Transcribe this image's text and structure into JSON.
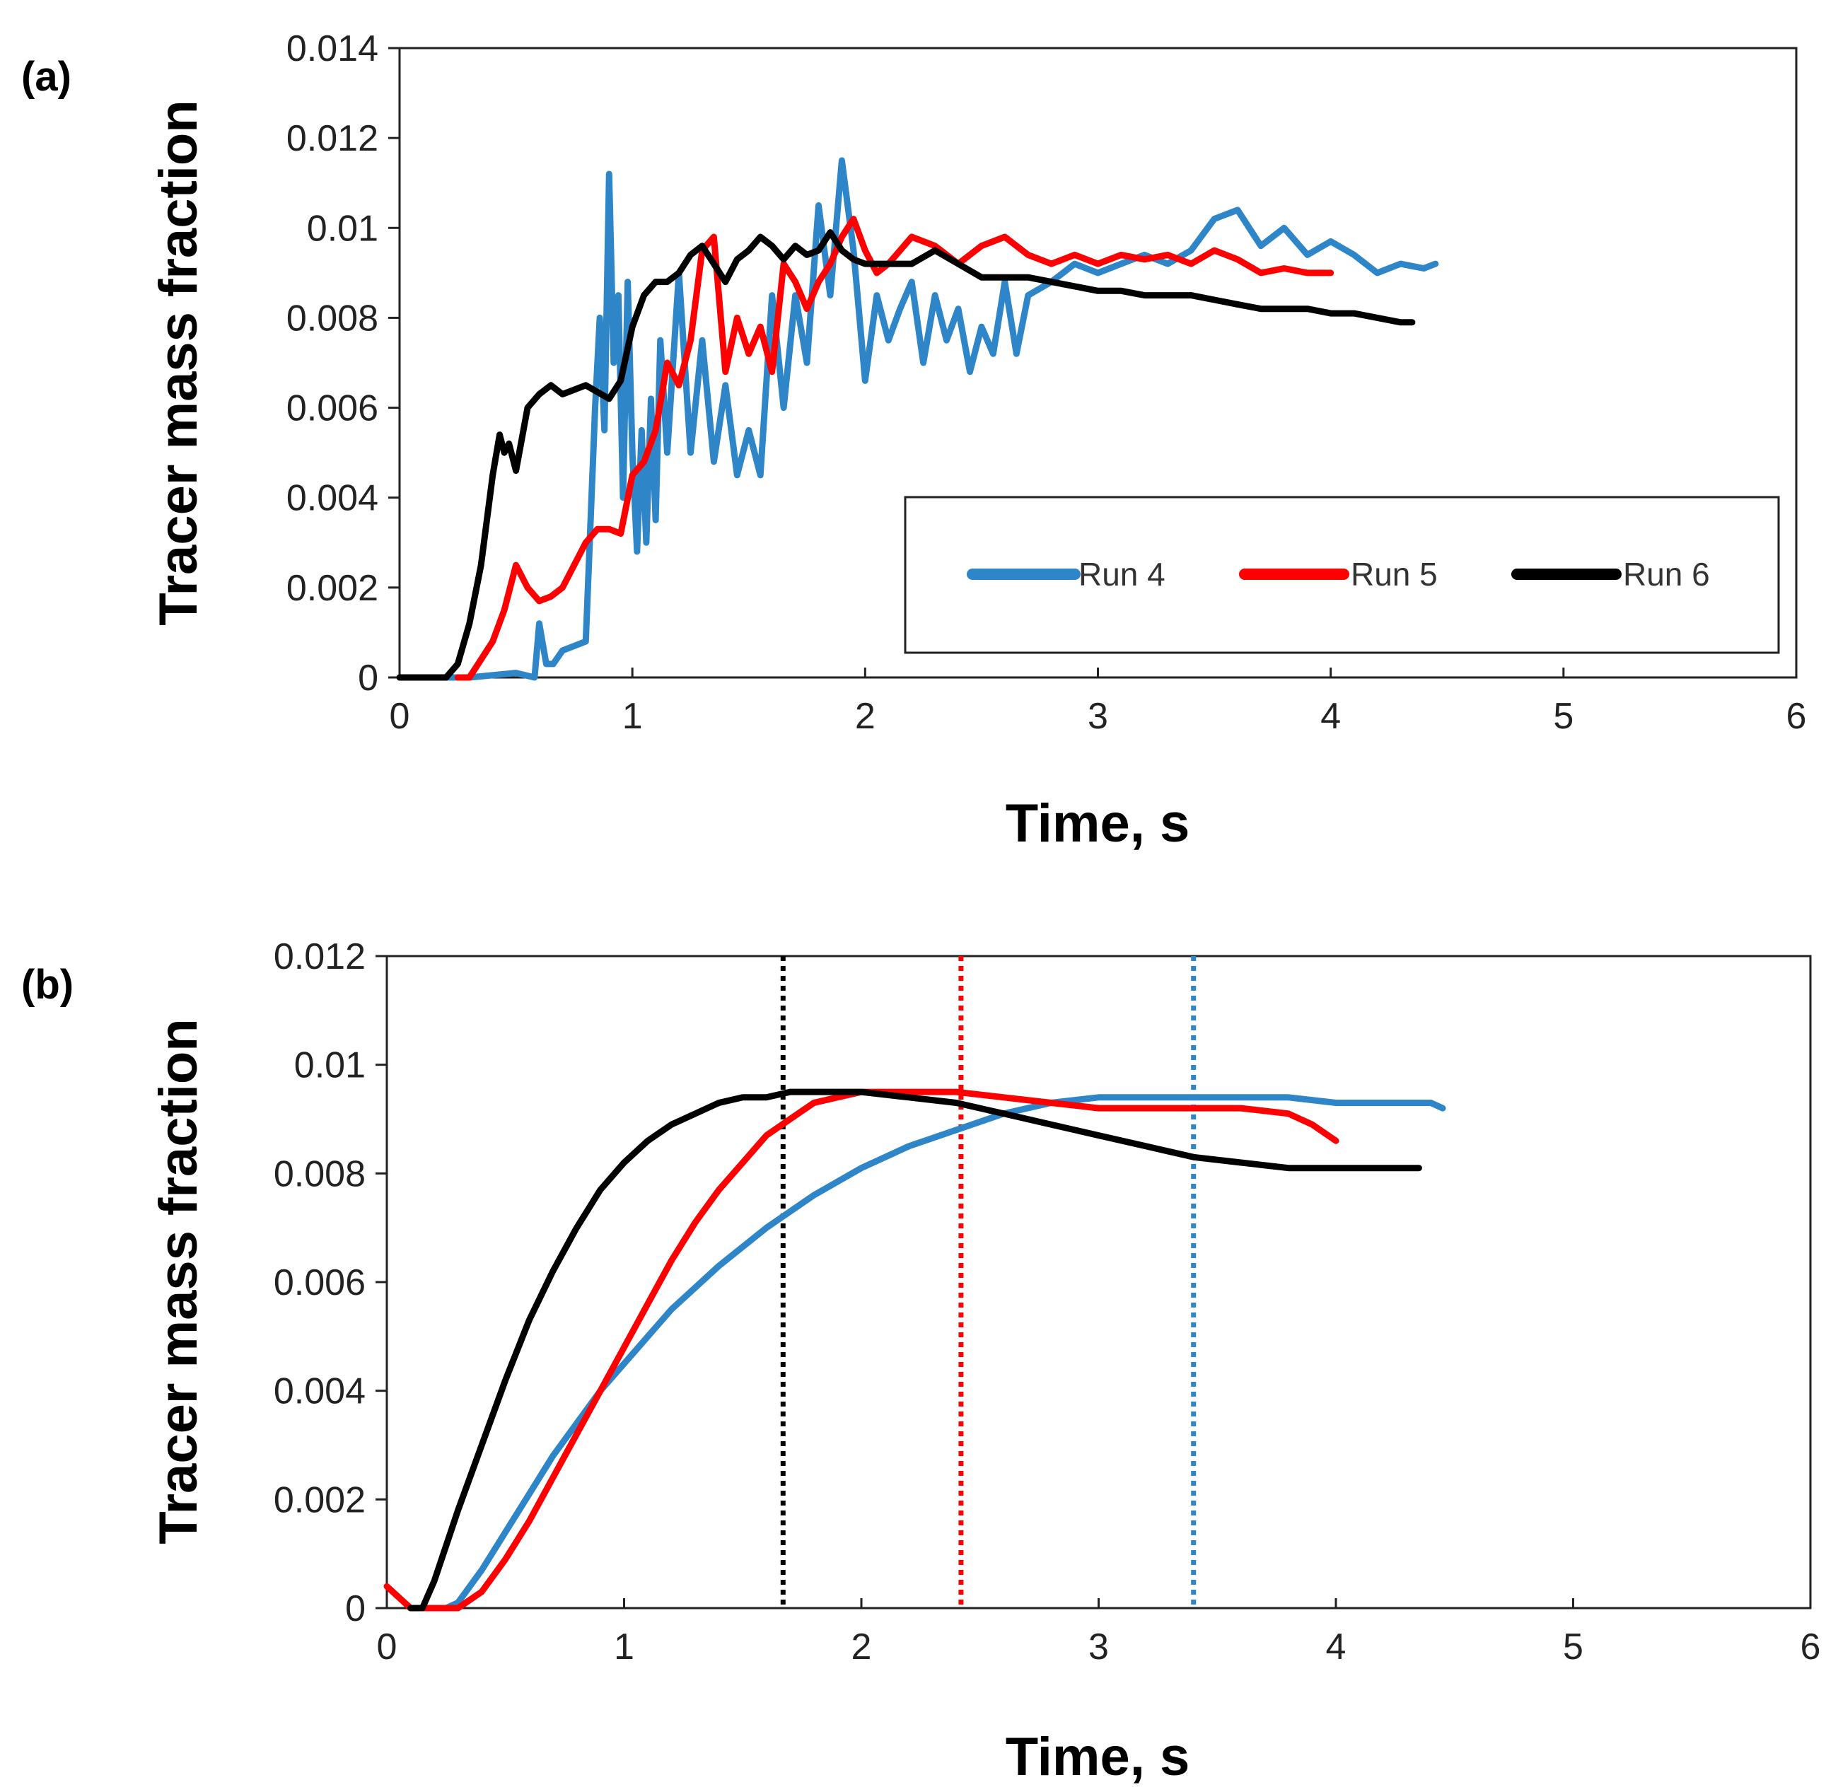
{
  "chart_data": [
    {
      "panel": "(a)",
      "type": "line",
      "xlabel": "Time, s",
      "ylabel": "Tracer  mass fraction",
      "xlim": [
        0,
        6
      ],
      "ylim": [
        0,
        0.014
      ],
      "xticks": [
        "0",
        "1",
        "2",
        "3",
        "4",
        "5",
        "6"
      ],
      "yticks": [
        "0",
        "0.002",
        "0.004",
        "0.006",
        "0.008",
        "0.01",
        "0.012",
        "0.014"
      ],
      "legend_position": "bottom-right",
      "series": [
        {
          "name": "Run 4",
          "color": "#2e86c8",
          "x": [
            0,
            0.3,
            0.5,
            0.58,
            0.6,
            0.63,
            0.66,
            0.7,
            0.8,
            0.84,
            0.86,
            0.88,
            0.9,
            0.92,
            0.94,
            0.96,
            0.98,
            1.0,
            1.02,
            1.04,
            1.06,
            1.08,
            1.1,
            1.12,
            1.15,
            1.2,
            1.25,
            1.3,
            1.35,
            1.4,
            1.45,
            1.5,
            1.55,
            1.6,
            1.65,
            1.7,
            1.75,
            1.8,
            1.85,
            1.9,
            1.95,
            2.0,
            2.05,
            2.1,
            2.15,
            2.2,
            2.25,
            2.3,
            2.35,
            2.4,
            2.45,
            2.5,
            2.55,
            2.6,
            2.65,
            2.7,
            2.8,
            2.9,
            3.0,
            3.1,
            3.2,
            3.3,
            3.4,
            3.5,
            3.6,
            3.7,
            3.8,
            3.9,
            4.0,
            4.1,
            4.2,
            4.3,
            4.4,
            4.45
          ],
          "y": [
            0,
            0,
            0.0001,
            0.0,
            0.0012,
            0.0003,
            0.0003,
            0.0006,
            0.0008,
            0.006,
            0.008,
            0.0055,
            0.0112,
            0.007,
            0.0085,
            0.004,
            0.0088,
            0.005,
            0.0028,
            0.0055,
            0.003,
            0.0062,
            0.0035,
            0.0075,
            0.005,
            0.009,
            0.005,
            0.0075,
            0.0048,
            0.0065,
            0.0045,
            0.0055,
            0.0045,
            0.0085,
            0.006,
            0.0085,
            0.007,
            0.0105,
            0.0085,
            0.0115,
            0.0095,
            0.0066,
            0.0085,
            0.0075,
            0.0082,
            0.0088,
            0.007,
            0.0085,
            0.0075,
            0.0082,
            0.0068,
            0.0078,
            0.0072,
            0.0088,
            0.0072,
            0.0085,
            0.0088,
            0.0092,
            0.009,
            0.0092,
            0.0094,
            0.0092,
            0.0095,
            0.0102,
            0.0104,
            0.0096,
            0.01,
            0.0094,
            0.0097,
            0.0094,
            0.009,
            0.0092,
            0.0091,
            0.0092
          ]
        },
        {
          "name": "Run 5",
          "color": "#ff0000",
          "x": [
            0.25,
            0.3,
            0.4,
            0.45,
            0.5,
            0.55,
            0.6,
            0.65,
            0.7,
            0.75,
            0.8,
            0.85,
            0.9,
            0.95,
            1.0,
            1.05,
            1.1,
            1.15,
            1.2,
            1.25,
            1.3,
            1.35,
            1.4,
            1.45,
            1.5,
            1.55,
            1.6,
            1.65,
            1.7,
            1.75,
            1.8,
            1.85,
            1.9,
            1.95,
            2.0,
            2.05,
            2.1,
            2.2,
            2.3,
            2.4,
            2.5,
            2.6,
            2.7,
            2.8,
            2.9,
            3.0,
            3.1,
            3.2,
            3.3,
            3.4,
            3.5,
            3.6,
            3.7,
            3.8,
            3.9,
            4.0
          ],
          "y": [
            0,
            0,
            0.0008,
            0.0015,
            0.0025,
            0.002,
            0.0017,
            0.0018,
            0.002,
            0.0025,
            0.003,
            0.0033,
            0.0033,
            0.0032,
            0.0045,
            0.0048,
            0.0055,
            0.007,
            0.0065,
            0.0075,
            0.0095,
            0.0098,
            0.0068,
            0.008,
            0.0072,
            0.0078,
            0.0068,
            0.0092,
            0.0088,
            0.0082,
            0.0088,
            0.0092,
            0.0098,
            0.0102,
            0.0095,
            0.009,
            0.0092,
            0.0098,
            0.0096,
            0.0092,
            0.0096,
            0.0098,
            0.0094,
            0.0092,
            0.0094,
            0.0092,
            0.0094,
            0.0093,
            0.0094,
            0.0092,
            0.0095,
            0.0093,
            0.009,
            0.0091,
            0.009,
            0.009
          ]
        },
        {
          "name": "Run 6",
          "color": "#000000",
          "x": [
            0,
            0.2,
            0.25,
            0.3,
            0.35,
            0.4,
            0.43,
            0.45,
            0.47,
            0.5,
            0.55,
            0.6,
            0.65,
            0.7,
            0.8,
            0.9,
            0.95,
            1.0,
            1.05,
            1.1,
            1.15,
            1.2,
            1.25,
            1.3,
            1.35,
            1.4,
            1.45,
            1.5,
            1.55,
            1.6,
            1.65,
            1.7,
            1.75,
            1.8,
            1.85,
            1.9,
            1.95,
            2.0,
            2.1,
            2.2,
            2.3,
            2.4,
            2.5,
            2.6,
            2.7,
            2.8,
            2.9,
            3.0,
            3.1,
            3.2,
            3.3,
            3.4,
            3.5,
            3.6,
            3.7,
            3.8,
            3.9,
            4.0,
            4.1,
            4.2,
            4.3,
            4.35
          ],
          "y": [
            0,
            0,
            0.0003,
            0.0012,
            0.0025,
            0.0045,
            0.0054,
            0.005,
            0.0052,
            0.0046,
            0.006,
            0.0063,
            0.0065,
            0.0063,
            0.0065,
            0.0062,
            0.0066,
            0.0078,
            0.0085,
            0.0088,
            0.0088,
            0.009,
            0.0094,
            0.0096,
            0.0092,
            0.0088,
            0.0093,
            0.0095,
            0.0098,
            0.0096,
            0.0093,
            0.0096,
            0.0094,
            0.0095,
            0.0099,
            0.0095,
            0.0093,
            0.0092,
            0.0092,
            0.0092,
            0.0095,
            0.0092,
            0.0089,
            0.0089,
            0.0089,
            0.0088,
            0.0087,
            0.0086,
            0.0086,
            0.0085,
            0.0085,
            0.0085,
            0.0084,
            0.0083,
            0.0082,
            0.0082,
            0.0082,
            0.0081,
            0.0081,
            0.008,
            0.0079,
            0.0079
          ]
        }
      ]
    },
    {
      "panel": "(b)",
      "type": "line",
      "xlabel": "Time, s",
      "ylabel": "Tracer  mass fraction",
      "xlim": [
        0,
        6
      ],
      "ylim": [
        0,
        0.012
      ],
      "xticks": [
        "0",
        "1",
        "2",
        "3",
        "4",
        "5",
        "6"
      ],
      "yticks": [
        "0",
        "0.002",
        "0.004",
        "0.006",
        "0.008",
        "0.01",
        "0.012"
      ],
      "series": [
        {
          "name": "Run 4",
          "color": "#2e86c8",
          "x": [
            0.25,
            0.3,
            0.4,
            0.5,
            0.6,
            0.7,
            0.8,
            0.9,
            1.0,
            1.2,
            1.4,
            1.6,
            1.8,
            2.0,
            2.2,
            2.4,
            2.6,
            2.8,
            3.0,
            3.2,
            3.4,
            3.6,
            3.8,
            4.0,
            4.2,
            4.4,
            4.45
          ],
          "y": [
            0,
            0.0001,
            0.0007,
            0.0014,
            0.0021,
            0.0028,
            0.0034,
            0.004,
            0.0045,
            0.0055,
            0.0063,
            0.007,
            0.0076,
            0.0081,
            0.0085,
            0.0088,
            0.0091,
            0.0093,
            0.0094,
            0.0094,
            0.0094,
            0.0094,
            0.0094,
            0.0093,
            0.0093,
            0.0093,
            0.0092
          ]
        },
        {
          "name": "Run 5",
          "color": "#ff0000",
          "x": [
            0,
            0.1,
            0.3,
            0.4,
            0.5,
            0.6,
            0.7,
            0.8,
            0.9,
            1.0,
            1.1,
            1.2,
            1.3,
            1.4,
            1.5,
            1.6,
            1.7,
            1.8,
            1.9,
            2.0,
            2.1,
            2.2,
            2.4,
            2.6,
            2.8,
            3.0,
            3.2,
            3.4,
            3.6,
            3.8,
            3.9,
            4.0
          ],
          "y": [
            0.0004,
            0,
            0,
            0.0003,
            0.0009,
            0.0016,
            0.0024,
            0.0032,
            0.004,
            0.0048,
            0.0056,
            0.0064,
            0.0071,
            0.0077,
            0.0082,
            0.0087,
            0.009,
            0.0093,
            0.0094,
            0.0095,
            0.0095,
            0.0095,
            0.0095,
            0.0094,
            0.0093,
            0.0092,
            0.0092,
            0.0092,
            0.0092,
            0.0091,
            0.0089,
            0.0086
          ]
        },
        {
          "name": "Run 6",
          "color": "#000000",
          "x": [
            0.1,
            0.15,
            0.2,
            0.3,
            0.4,
            0.5,
            0.6,
            0.7,
            0.8,
            0.9,
            1.0,
            1.1,
            1.2,
            1.3,
            1.4,
            1.5,
            1.6,
            1.7,
            1.8,
            1.9,
            2.0,
            2.2,
            2.4,
            2.6,
            2.8,
            3.0,
            3.2,
            3.4,
            3.6,
            3.8,
            4.0,
            4.2,
            4.35
          ],
          "y": [
            0,
            0,
            0.0005,
            0.0018,
            0.003,
            0.0042,
            0.0053,
            0.0062,
            0.007,
            0.0077,
            0.0082,
            0.0086,
            0.0089,
            0.0091,
            0.0093,
            0.0094,
            0.0094,
            0.0095,
            0.0095,
            0.0095,
            0.0095,
            0.0094,
            0.0093,
            0.0091,
            0.0089,
            0.0087,
            0.0085,
            0.0083,
            0.0082,
            0.0081,
            0.0081,
            0.0081,
            0.0081
          ]
        }
      ],
      "vlines": [
        {
          "x": 1.67,
          "color": "#000000"
        },
        {
          "x": 2.42,
          "color": "#ff0000"
        },
        {
          "x": 3.4,
          "color": "#2e86c8"
        }
      ]
    }
  ]
}
